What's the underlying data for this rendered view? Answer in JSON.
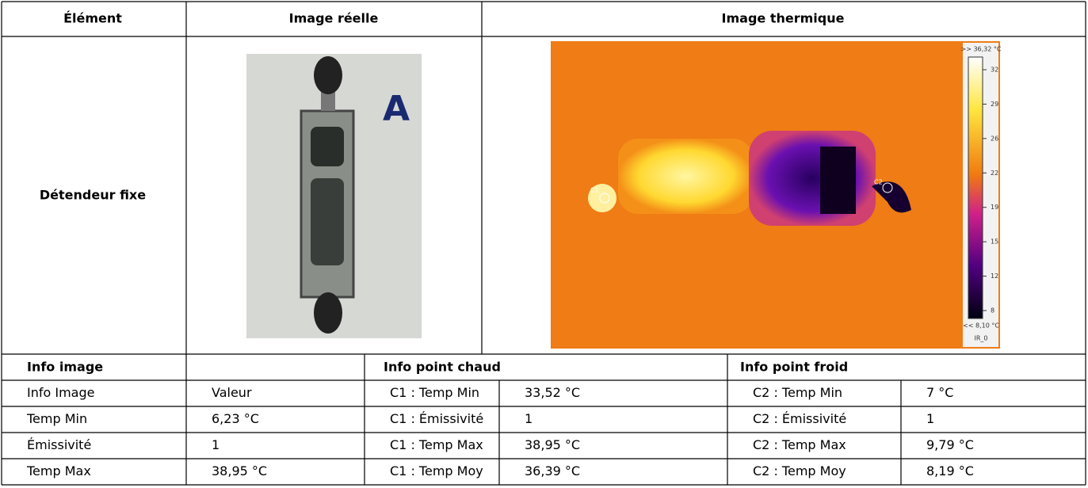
{
  "header": {
    "element": "Élément",
    "real_image": "Image réelle",
    "thermal_image": "Image thermique"
  },
  "row": {
    "element": "Détendeur fixe"
  },
  "photo": {
    "label": "A"
  },
  "thermal": {
    "scale_top": ">> 36,32 °C",
    "scale_ticks": [
      "32",
      "29",
      "26",
      "22",
      "19",
      "15",
      "12",
      "8"
    ],
    "scale_bottom": "<< 8,10 °C",
    "footer": "IR_0",
    "spot1": "C1",
    "spot2": "C2"
  },
  "info": {
    "image": "Info image",
    "hot": "Info point chaud",
    "cold": "Info point froid",
    "rows": [
      [
        "Info Image",
        "Valeur",
        "C1 : Temp Min",
        "33,52 °C",
        "C2 : Temp Min",
        "7 °C"
      ],
      [
        "Temp Min",
        "6,23 °C",
        "C1 : Émissivité",
        "1",
        "C2 : Émissivité",
        "1"
      ],
      [
        "Émissivité",
        "1",
        "C1 : Temp Max",
        "38,95 °C",
        "C2 : Temp Max",
        "9,79 °C"
      ],
      [
        "Temp Max",
        "38,95 °C",
        "C1 : Temp Moy",
        "36,39 °C",
        "C2 : Temp Moy",
        "8,19 °C"
      ]
    ]
  }
}
